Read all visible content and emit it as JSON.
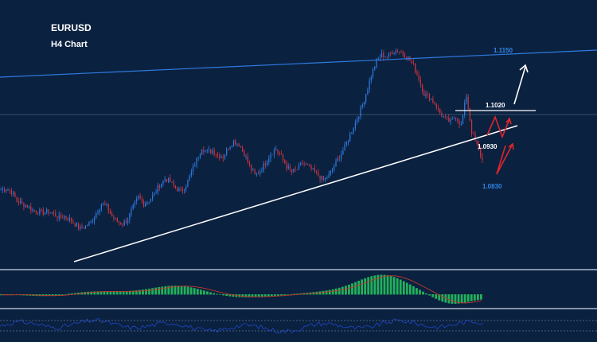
{
  "header": {
    "symbol": "EURUSD",
    "timeframe": "H4 Chart"
  },
  "colors": {
    "background": "#0b2140",
    "bull_candle": "#2f7be0",
    "bear_candle": "#d1333a",
    "trendline": "#ffffff",
    "channel_line": "#2f7be0",
    "projection_red": "#e0262b",
    "projection_white": "#ffffff",
    "histogram": "#22b15a",
    "signal_line": "#c0392b",
    "rsi_line": "#1f47c9",
    "label_blue": "#2f86e8",
    "label_white": "#ffffff"
  },
  "chart_data": {
    "type": "candlestick",
    "symbol": "EURUSD",
    "timeframe": "H4",
    "ylim": [
      1.06,
      1.145
    ],
    "close_path": [
      1.0845,
      1.0848,
      1.0838,
      1.081,
      1.08,
      1.0792,
      1.078,
      1.0775,
      1.0772,
      1.0775,
      1.0768,
      1.0755,
      1.076,
      1.075,
      1.0735,
      1.072,
      1.0728,
      1.074,
      1.077,
      1.08,
      1.079,
      1.076,
      1.0742,
      1.0735,
      1.0752,
      1.079,
      1.082,
      1.08,
      1.081,
      1.083,
      1.086,
      1.088,
      1.087,
      1.085,
      1.084,
      1.086,
      1.09,
      1.094,
      1.098,
      1.0965,
      1.097,
      1.0955,
      1.095,
      1.098,
      1.1,
      1.099,
      1.096,
      1.092,
      1.089,
      1.0905,
      1.093,
      1.096,
      1.0975,
      1.095,
      1.092,
      1.09,
      1.091,
      1.093,
      1.092,
      1.0905,
      1.089,
      1.0875,
      1.089,
      1.092,
      1.095,
      1.098,
      1.102,
      1.106,
      1.11,
      1.115,
      1.121,
      1.1255,
      1.1275,
      1.127,
      1.1285,
      1.129,
      1.128,
      1.1265,
      1.124,
      1.12,
      1.115,
      1.114,
      1.112,
      1.109,
      1.107,
      1.106,
      1.108,
      1.105,
      1.1145,
      1.103,
      1.0985,
      1.094
    ],
    "annotations": [
      {
        "label": "1.1150",
        "value": 1.115,
        "kind": "channel-line"
      },
      {
        "label": "1.1020",
        "value": 1.102,
        "kind": "resistance-level"
      },
      {
        "label": "1.0930",
        "value": 1.093,
        "kind": "support-level"
      },
      {
        "label": "1.0830",
        "value": 1.083,
        "kind": "target-level"
      }
    ],
    "indicators": [
      "MACD histogram with signal line",
      "RSI line"
    ]
  }
}
